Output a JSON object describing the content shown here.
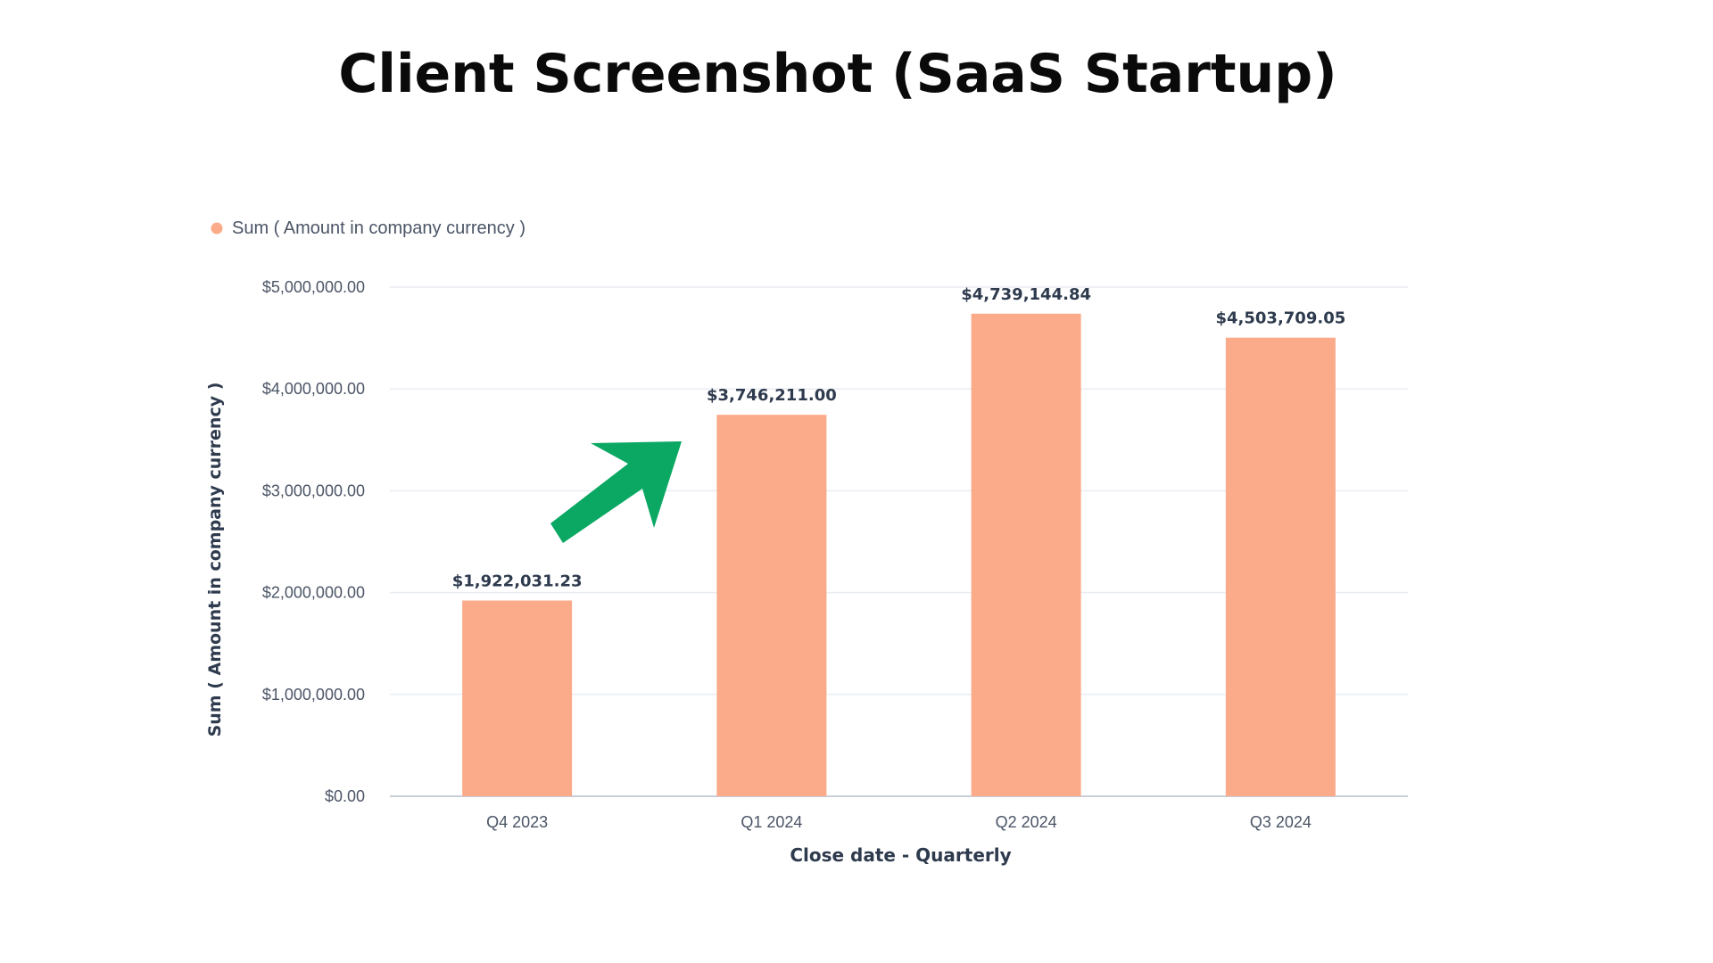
{
  "page": {
    "title": "Client Screenshot (SaaS Startup)"
  },
  "colors": {
    "bar": "#fbab89",
    "arrow": "#0aa863",
    "legend_dot": "#fbab89",
    "text": "#2e3a4d",
    "axis_text": "#4b5566",
    "grid": "#e9ecf1",
    "baseline": "#c9ced8"
  },
  "chart_data": {
    "type": "bar",
    "categories": [
      "Q4 2023",
      "Q1 2024",
      "Q2 2024",
      "Q3 2024"
    ],
    "series": [
      {
        "name": "Sum ( Amount in company currency )",
        "values": [
          1922031.23,
          3746211.0,
          4739144.84,
          4503709.05
        ]
      }
    ],
    "data_labels": [
      "$1,922,031.23",
      "$3,746,211.00",
      "$4,739,144.84",
      "$4,503,709.05"
    ],
    "xlabel": "Close date - Quarterly",
    "ylabel": "Sum ( Amount in company currency )",
    "ylim": [
      0,
      5000000
    ],
    "yticks": [
      0,
      1000000,
      2000000,
      3000000,
      4000000,
      5000000
    ],
    "ytick_labels": [
      "$0.00",
      "$1,000,000.00",
      "$2,000,000.00",
      "$3,000,000.00",
      "$4,000,000.00",
      "$5,000,000.00"
    ],
    "grid": true,
    "legend_position": "top-left",
    "annotation": "green-arrow-up-right"
  }
}
